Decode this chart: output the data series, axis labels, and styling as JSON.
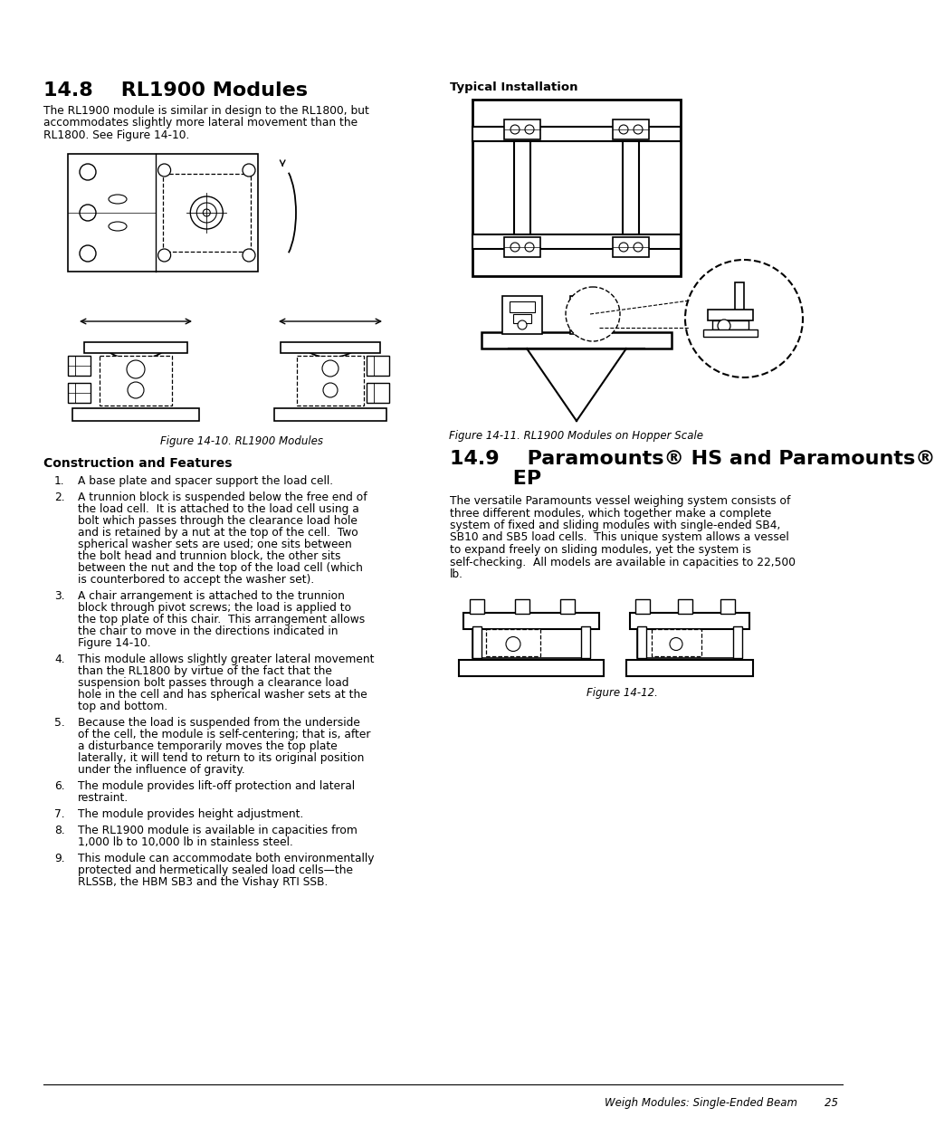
{
  "title_148": "14.8    RL1900 Modules",
  "title_149_line1": "14.9    Paramounts® HS and Paramounts®",
  "title_149_line2": "         EP",
  "typical_installation_label": "Typical Installation",
  "fig1010_label": "Figure 14-10. RL1900 Modules",
  "fig1011_label": "Figure 14-11. RL1900 Modules on Hopper Scale",
  "fig12_label": "Figure 14-12.",
  "construction_features_label": "Construction and Features",
  "footer_text": "Weigh Modules: Single-Ended Beam",
  "footer_page": "25",
  "body_148_lines": [
    "The RL1900 module is similar in design to the RL1800, but",
    "accommodates slightly more lateral movement than the",
    "RL1800. See Figure 14-10."
  ],
  "body_149_lines": [
    "The versatile Paramounts vessel weighing system consists of",
    "three different modules, which together make a complete",
    "system of fixed and sliding modules with single-ended SB4,",
    "SB10 and SB5 load cells.  This unique system allows a vessel",
    "to expand freely on sliding modules, yet the system is",
    "self-checking.  All models are available in capacities to 22,500",
    "lb."
  ],
  "numbered_items": [
    [
      "A base plate and spacer support the load cell."
    ],
    [
      "A trunnion block is suspended below the free end of",
      "the load cell.  It is attached to the load cell using a",
      "bolt which passes through the clearance load hole",
      "and is retained by a nut at the top of the cell.  Two",
      "spherical washer sets are used; one sits between",
      "the bolt head and trunnion block, the other sits",
      "between the nut and the top of the load cell (which",
      "is counterbored to accept the washer set)."
    ],
    [
      "A chair arrangement is attached to the trunnion",
      "block through pivot screws; the load is applied to",
      "the top plate of this chair.  This arrangement allows",
      "the chair to move in the directions indicated in",
      "Figure 14-10."
    ],
    [
      "This module allows slightly greater lateral movement",
      "than the RL1800 by virtue of the fact that the",
      "suspension bolt passes through a clearance load",
      "hole in the cell and has spherical washer sets at the",
      "top and bottom."
    ],
    [
      "Because the load is suspended from the underside",
      "of the cell, the module is self-centering; that is, after",
      "a disturbance temporarily moves the top plate",
      "laterally, it will tend to return to its original position",
      "under the influence of gravity."
    ],
    [
      "The module provides lift-off protection and lateral",
      "restraint."
    ],
    [
      "The module provides height adjustment."
    ],
    [
      "The RL1900 module is available in capacities from",
      "1,000 lb to 10,000 lb in stainless steel."
    ],
    [
      "This module can accommodate both environmentally",
      "protected and hermetically sealed load cells—the",
      "RLSSB, the HBM SB3 and the Vishay RTI SSB."
    ]
  ],
  "bg_color": "#ffffff",
  "text_color": "#000000"
}
